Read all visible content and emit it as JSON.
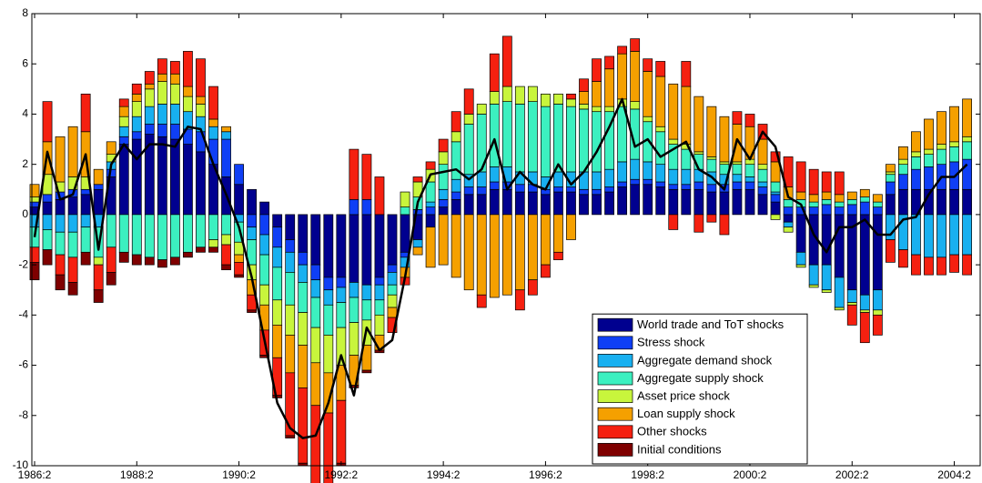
{
  "chart_data": {
    "type": "bar",
    "stacked": true,
    "categories": [
      "1986:2",
      null,
      null,
      null,
      null,
      null,
      null,
      null,
      "1988:2",
      null,
      null,
      null,
      null,
      null,
      null,
      null,
      "1990:2",
      null,
      null,
      null,
      null,
      null,
      null,
      null,
      "1992:2",
      null,
      null,
      null,
      null,
      null,
      null,
      null,
      "1994:2",
      null,
      null,
      null,
      null,
      null,
      null,
      null,
      "1996:2",
      null,
      null,
      null,
      null,
      null,
      null,
      null,
      "1998:2",
      null,
      null,
      null,
      null,
      null,
      null,
      null,
      "2000:2",
      null,
      null,
      null,
      null,
      null,
      null,
      null,
      "2002:2",
      null,
      null,
      null,
      null,
      null,
      null,
      null,
      "2004:2",
      null
    ],
    "ylim": [
      -10,
      8
    ],
    "yticks": [
      -10,
      -8,
      -6,
      -4,
      -2,
      0,
      2,
      4,
      6,
      8
    ],
    "legend": "lower right",
    "series": [
      {
        "name": "World trade and ToT shocks",
        "color": "#00008f",
        "values": [
          0.3,
          0.5,
          0.6,
          0.7,
          0.8,
          1.0,
          1.5,
          2.8,
          3.0,
          3.2,
          3.1,
          3.0,
          2.8,
          2.5,
          2.0,
          1.5,
          1.2,
          1.0,
          0.5,
          -0.5,
          -1.0,
          -1.5,
          -2.0,
          -2.5,
          -2.5,
          -2.7,
          -2.8,
          -2.5,
          -2.0,
          -1.5,
          -1.0,
          -0.5,
          0.3,
          0.6,
          0.8,
          0.8,
          1.0,
          1.0,
          0.9,
          0.9,
          0.8,
          0.9,
          0.9,
          0.8,
          0.8,
          0.9,
          1.1,
          1.2,
          1.2,
          1.1,
          1.0,
          1.0,
          1.0,
          0.9,
          0.9,
          1.0,
          1.0,
          0.8,
          0.5,
          -0.3,
          -1.5,
          -2.0,
          -2.0,
          -2.5,
          -3.0,
          -3.2,
          -3.0,
          0.8,
          1.0,
          1.0,
          1.0,
          1.0,
          1.0,
          1.0
        ]
      },
      {
        "name": "Stress shock",
        "color": "#0f3ff5",
        "values": [
          0.2,
          0.3,
          0.3,
          0.3,
          0.2,
          0.2,
          0.3,
          0.3,
          0.3,
          0.4,
          0.5,
          0.6,
          0.6,
          0.8,
          1.0,
          1.5,
          0.8,
          -0.5,
          -0.8,
          -0.8,
          -0.5,
          -0.5,
          -0.6,
          -0.5,
          -0.4,
          0.6,
          0.6,
          -0.3,
          -0.3,
          -0.2,
          0.2,
          0.3,
          0.3,
          0.3,
          0.3,
          0.3,
          0.3,
          0.3,
          0.3,
          0.3,
          0.2,
          0.2,
          0.2,
          0.2,
          0.2,
          0.2,
          0.2,
          0.2,
          0.2,
          0.2,
          0.2,
          0.2,
          0.3,
          0.3,
          0.3,
          0.3,
          0.3,
          0.3,
          0.3,
          0.3,
          0.3,
          0.3,
          0.4,
          0.3,
          0.4,
          0.5,
          0.3,
          0.5,
          0.6,
          0.8,
          0.9,
          1.0,
          1.1,
          1.2
        ]
      },
      {
        "name": "Aggregate demand shock",
        "color": "#18b0f0",
        "values": [
          -0.5,
          -0.6,
          -0.7,
          -0.7,
          -0.5,
          -0.5,
          0.3,
          0.4,
          0.6,
          0.7,
          0.8,
          0.8,
          0.7,
          0.6,
          0.5,
          0.3,
          -0.3,
          -0.5,
          -0.8,
          -0.8,
          -0.8,
          -0.7,
          -0.7,
          -0.6,
          -0.6,
          -0.6,
          -0.6,
          -0.6,
          -0.5,
          -0.4,
          -0.3,
          0.2,
          0.4,
          0.5,
          0.5,
          0.6,
          0.6,
          0.6,
          0.5,
          0.5,
          0.5,
          0.6,
          0.6,
          0.7,
          0.7,
          0.7,
          0.8,
          0.8,
          0.7,
          0.7,
          0.6,
          0.6,
          0.5,
          0.5,
          0.4,
          0.3,
          0.2,
          0.2,
          0.1,
          -0.2,
          -0.5,
          -0.8,
          -1.0,
          -1.2,
          -0.5,
          -0.6,
          -0.8,
          -1.0,
          -1.4,
          -1.6,
          -1.7,
          -1.7,
          -1.6,
          -1.6
        ]
      },
      {
        "name": "Aggregate supply shock",
        "color": "#3cf0c0",
        "values": [
          -0.8,
          -0.8,
          -0.9,
          -1.0,
          -1.0,
          -1.2,
          -1.3,
          -1.5,
          -1.6,
          -1.7,
          -1.8,
          -1.7,
          -1.5,
          -1.3,
          -1.0,
          -0.8,
          -0.8,
          -1.0,
          -1.2,
          -1.3,
          -1.3,
          -1.2,
          -1.2,
          -1.2,
          -1.0,
          -1.0,
          -0.8,
          -0.6,
          -0.4,
          0.3,
          0.5,
          0.8,
          1.0,
          1.5,
          2.0,
          2.3,
          2.5,
          2.6,
          2.7,
          2.8,
          2.8,
          2.7,
          2.6,
          2.5,
          2.4,
          2.3,
          2.2,
          2.0,
          1.6,
          1.3,
          1.0,
          0.8,
          0.6,
          0.5,
          0.4,
          0.4,
          0.5,
          0.5,
          0.4,
          0.3,
          0.3,
          0.2,
          0.2,
          0.2,
          0.2,
          0.2,
          0.2,
          0.3,
          0.4,
          0.5,
          0.5,
          0.6,
          0.6,
          0.7
        ]
      },
      {
        "name": "Asset price shock",
        "color": "#c8f53c",
        "values": [
          0.2,
          0.8,
          0.4,
          0.5,
          0.5,
          -0.3,
          0.3,
          0.4,
          0.6,
          0.7,
          0.9,
          0.8,
          0.6,
          0.5,
          -0.3,
          -0.4,
          -0.5,
          -0.6,
          -0.8,
          -1.0,
          -1.2,
          -1.3,
          -1.4,
          -1.5,
          -1.5,
          -1.3,
          -1.0,
          -0.8,
          -0.5,
          0.6,
          0.6,
          0.5,
          0.5,
          0.4,
          0.4,
          0.4,
          0.5,
          0.6,
          0.7,
          0.6,
          0.5,
          0.4,
          0.3,
          0.2,
          0.2,
          0.2,
          0.3,
          0.3,
          0.2,
          0.2,
          0.2,
          0.2,
          0.1,
          0.1,
          0.1,
          0.1,
          0.2,
          0.2,
          -0.2,
          -0.2,
          -0.1,
          -0.1,
          -0.1,
          -0.1,
          -0.1,
          -0.1,
          -0.2,
          0.1,
          0.2,
          0.2,
          0.2,
          0.2,
          0.2,
          0.2
        ]
      },
      {
        "name": "Loan supply shock",
        "color": "#f5a000",
        "values": [
          0.5,
          1.3,
          1.8,
          2.0,
          1.8,
          0.6,
          0.5,
          0.4,
          0.3,
          0.2,
          0.3,
          0.4,
          0.4,
          0.3,
          0.3,
          0.2,
          -0.3,
          -0.6,
          -1.0,
          -1.3,
          -1.5,
          -1.7,
          -1.7,
          -1.6,
          -1.4,
          -1.2,
          -1.0,
          -0.6,
          -0.4,
          -0.4,
          -0.3,
          -1.6,
          -2.0,
          -2.5,
          -3.0,
          -3.2,
          -3.3,
          -3.2,
          -3.0,
          -2.6,
          -2.0,
          -1.5,
          -1.0,
          0.5,
          1.0,
          1.5,
          1.8,
          2.0,
          1.8,
          2.0,
          2.2,
          2.3,
          2.2,
          2.0,
          1.8,
          1.5,
          1.3,
          1.0,
          0.8,
          0.5,
          0.3,
          0.3,
          0.3,
          0.3,
          0.3,
          0.3,
          0.3,
          0.3,
          0.5,
          0.8,
          1.2,
          1.3,
          1.4,
          1.5
        ]
      },
      {
        "name": "Other shocks",
        "color": "#f52010",
        "values": [
          -0.6,
          1.6,
          -0.8,
          -1.0,
          1.5,
          -1.0,
          -1.0,
          0.3,
          0.4,
          0.5,
          0.6,
          0.5,
          1.4,
          1.5,
          1.3,
          -0.8,
          -0.5,
          -0.6,
          -1.0,
          -1.5,
          -2.5,
          -3.0,
          -3.2,
          -3.0,
          -2.5,
          2.0,
          1.8,
          1.5,
          -0.6,
          -0.3,
          0.2,
          0.3,
          0.5,
          0.8,
          1.0,
          -0.5,
          1.5,
          2.0,
          -0.8,
          -0.6,
          -0.5,
          -0.3,
          0.2,
          0.5,
          0.9,
          0.5,
          0.3,
          0.5,
          0.5,
          0.6,
          -0.6,
          1.0,
          -0.7,
          -0.3,
          -0.8,
          0.5,
          0.5,
          0.6,
          0.4,
          1.2,
          1.2,
          1.0,
          0.8,
          0.9,
          -0.8,
          -1.2,
          -0.8,
          -0.9,
          -0.7,
          -0.8,
          -0.7,
          -0.7,
          -0.7,
          -0.8
        ]
      },
      {
        "name": "Initial conditions",
        "color": "#7f0000",
        "values": [
          -0.7,
          -0.6,
          -0.6,
          -0.5,
          -0.5,
          -0.5,
          -0.5,
          -0.4,
          -0.4,
          -0.3,
          -0.3,
          -0.3,
          -0.2,
          -0.2,
          -0.2,
          -0.2,
          -0.1,
          -0.1,
          -0.1,
          -0.1,
          -0.1,
          -0.1,
          -0.1,
          -0.1,
          -0.1,
          -0.1,
          -0.1,
          -0.1,
          0,
          0,
          0,
          0,
          0,
          0,
          0,
          0,
          0,
          0,
          0,
          0,
          0,
          0,
          0,
          0,
          0,
          0,
          0,
          0,
          0,
          0,
          0,
          0,
          0,
          0,
          0,
          0,
          0,
          0,
          0,
          0,
          0,
          0,
          0,
          0,
          0,
          0,
          0,
          0,
          0,
          0,
          0,
          0,
          0,
          0
        ]
      }
    ],
    "total": {
      "color": "#000000",
      "values": [
        -0.9,
        2.5,
        0.6,
        0.8,
        2.4,
        -1.4,
        2.0,
        2.8,
        2.2,
        2.8,
        2.8,
        2.7,
        3.5,
        3.4,
        2.0,
        0.8,
        -0.5,
        -2.5,
        -5.0,
        -7.5,
        -8.5,
        -8.9,
        -8.8,
        -7.5,
        -5.6,
        -7.2,
        -4.5,
        -5.4,
        -5.0,
        -2.5,
        0.5,
        1.6,
        1.7,
        1.8,
        1.4,
        1.8,
        3.0,
        1.0,
        1.7,
        1.2,
        1.0,
        2.0,
        1.2,
        1.7,
        2.5,
        3.5,
        4.6,
        2.7,
        3.0,
        2.3,
        2.6,
        2.9,
        1.8,
        1.5,
        1.0,
        3.0,
        2.2,
        3.3,
        2.7,
        0.7,
        0.4,
        -0.8,
        -1.5,
        -0.5,
        -0.5,
        -0.2,
        -0.8,
        -0.8,
        -0.2,
        -0.1,
        0.8,
        1.5,
        1.5,
        2.0
      ]
    }
  }
}
